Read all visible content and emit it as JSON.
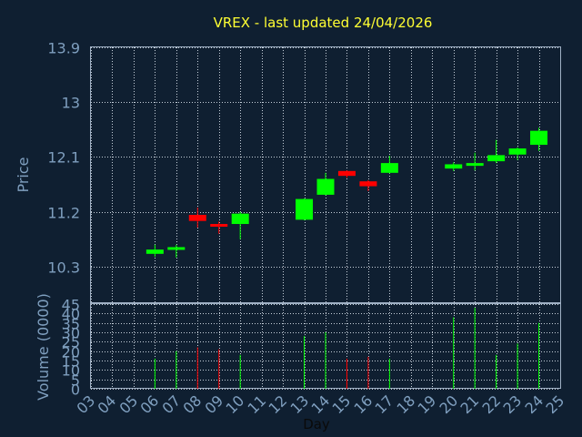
{
  "chart_data": {
    "type": "candlestick",
    "title": "VREX - last updated 24/04/2026",
    "xlabel": "Day",
    "price_panel": {
      "ylabel": "Price",
      "ylim": [
        9.7,
        13.9
      ],
      "y_ticks": [
        "13.9",
        "13",
        "12.1",
        "11.2",
        "10.3"
      ],
      "y_tick_values": [
        13.9,
        13.0,
        12.1,
        11.2,
        10.3
      ],
      "grid": true
    },
    "volume_panel": {
      "ylabel": "Volume (0000)",
      "ylim": [
        0,
        45
      ],
      "y_ticks": [
        "45",
        "40",
        "35",
        "30",
        "25",
        "20",
        "15",
        "10",
        "5",
        "0"
      ],
      "y_tick_values": [
        45,
        40,
        35,
        30,
        25,
        20,
        15,
        10,
        5,
        0
      ],
      "grid": true
    },
    "x_ticks": [
      "03",
      "04",
      "05",
      "06",
      "07",
      "08",
      "09",
      "10",
      "11",
      "12",
      "13",
      "14",
      "15",
      "16",
      "17",
      "18",
      "19",
      "20",
      "21",
      "22",
      "23",
      "24",
      "25"
    ],
    "x_tick_values": [
      3,
      4,
      5,
      6,
      7,
      8,
      9,
      10,
      11,
      12,
      13,
      14,
      15,
      16,
      17,
      18,
      19,
      20,
      21,
      22,
      23,
      24,
      25
    ],
    "xlim": [
      3,
      25
    ],
    "candles": [
      {
        "day": 6,
        "open": 10.51,
        "close": 10.58,
        "high": 10.66,
        "low": 10.46,
        "volume": 16
      },
      {
        "day": 7,
        "open": 10.59,
        "close": 10.62,
        "high": 10.66,
        "low": 10.45,
        "volume": 20
      },
      {
        "day": 8,
        "open": 11.15,
        "close": 11.05,
        "high": 11.27,
        "low": 10.94,
        "volume": 22
      },
      {
        "day": 9,
        "open": 11.0,
        "close": 10.96,
        "high": 11.04,
        "low": 10.84,
        "volume": 21
      },
      {
        "day": 10,
        "open": 11.0,
        "close": 11.17,
        "high": 11.2,
        "low": 10.75,
        "volume": 18
      },
      {
        "day": 13,
        "open": 11.07,
        "close": 11.41,
        "high": 11.42,
        "low": 11.06,
        "volume": 28
      },
      {
        "day": 14,
        "open": 11.48,
        "close": 11.74,
        "high": 11.84,
        "low": 11.47,
        "volume": 30
      },
      {
        "day": 15,
        "open": 11.87,
        "close": 11.79,
        "high": 11.88,
        "low": 11.76,
        "volume": 16
      },
      {
        "day": 16,
        "open": 11.7,
        "close": 11.62,
        "high": 11.72,
        "low": 11.54,
        "volume": 17
      },
      {
        "day": 17,
        "open": 11.84,
        "close": 12.0,
        "high": 12.12,
        "low": 11.83,
        "volume": 16
      },
      {
        "day": 20,
        "open": 11.91,
        "close": 11.98,
        "high": 12.01,
        "low": 11.87,
        "volume": 38
      },
      {
        "day": 21,
        "open": 11.98,
        "close": 12.0,
        "high": 12.17,
        "low": 11.88,
        "volume": 43
      },
      {
        "day": 22,
        "open": 12.03,
        "close": 12.13,
        "high": 12.38,
        "low": 12.0,
        "volume": 18
      },
      {
        "day": 23,
        "open": 12.14,
        "close": 12.24,
        "high": 12.26,
        "low": 12.05,
        "volume": 24
      },
      {
        "day": 24,
        "open": 12.3,
        "close": 12.53,
        "high": 12.58,
        "low": 12.2,
        "volume": 35
      }
    ],
    "colors": {
      "background": "#0f1f31",
      "up": "#00ff00",
      "down": "#ff0000",
      "title": "#ffff33",
      "axis_text": "#7f9fbf",
      "xlabel": "#0a0a0a",
      "grid": "#c8d2dc",
      "frame": "#9fb0c4"
    }
  }
}
